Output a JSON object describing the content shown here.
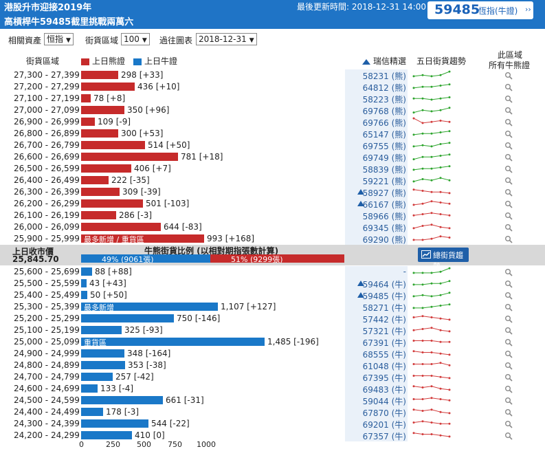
{
  "header": {
    "title_line1": "港股升市迎接2019年",
    "title_line2": "高槓桿牛59485截里挑戰兩萬六",
    "update_label": "最後更新時間: 2018-12-31 14:00",
    "box_number": "59485",
    "box_label": "恆指(牛證)",
    "box_arrow": "››",
    "brand_color": "#1f74c6"
  },
  "controls": {
    "asset_label": "相關資產",
    "asset_value": "恒指",
    "zone_label": "街貨區域",
    "zone_value": "100",
    "history_label": "過往圖表",
    "history_value": "2018-12-31"
  },
  "columns": {
    "zone": "街貨區域",
    "bear_legend": "上日熊證",
    "bull_legend": "上日牛證",
    "rating": "瑞信精選",
    "trend": "五日街貨趨勢",
    "all_line1": "此區域",
    "all_line2": "所有牛熊證"
  },
  "colors": {
    "bear": "#c62b2b",
    "bull": "#1a78c8",
    "trend_up": "#2ea52e",
    "trend_down": "#d23b3b",
    "code": "#2a5d9c"
  },
  "bear_rows": [
    {
      "range": "27,300 - 27,399",
      "value": 298,
      "text": "298 [+33]",
      "tag": "",
      "code": "58231 (熊)",
      "flag": false,
      "trend": [
        3,
        4,
        3,
        4,
        7
      ],
      "dir": "up"
    },
    {
      "range": "27,200 - 27,299",
      "value": 436,
      "text": "436 [+10]",
      "tag": "",
      "code": "64812 (熊)",
      "flag": false,
      "trend": [
        3,
        4,
        4,
        5,
        6
      ],
      "dir": "up"
    },
    {
      "range": "27,100 - 27,199",
      "value": 78,
      "text": "78 [+8]",
      "tag": "",
      "code": "58223 (熊)",
      "flag": false,
      "trend": [
        4,
        4,
        3,
        4,
        5
      ],
      "dir": "up"
    },
    {
      "range": "27,000 - 27,099",
      "value": 350,
      "text": "350 [+96]",
      "tag": "",
      "code": "69768 (熊)",
      "flag": false,
      "trend": [
        2,
        4,
        3,
        4,
        6
      ],
      "dir": "up"
    },
    {
      "range": "26,900 - 26,999",
      "value": 109,
      "text": "109 [-9]",
      "tag": "",
      "code": "69766 (熊)",
      "flag": false,
      "trend": [
        7,
        3,
        4,
        5,
        4
      ],
      "dir": "down"
    },
    {
      "range": "26,800 - 26,899",
      "value": 300,
      "text": "300 [+53]",
      "tag": "",
      "code": "65147 (熊)",
      "flag": false,
      "trend": [
        3,
        4,
        4,
        5,
        6
      ],
      "dir": "up"
    },
    {
      "range": "26,700 - 26,799",
      "value": 514,
      "text": "514 [+50]",
      "tag": "",
      "code": "69755 (熊)",
      "flag": false,
      "trend": [
        3,
        4,
        3,
        5,
        6
      ],
      "dir": "up"
    },
    {
      "range": "26,600 - 26,699",
      "value": 781,
      "text": "781 [+18]",
      "tag": "",
      "code": "69749 (熊)",
      "flag": false,
      "trend": [
        2,
        4,
        4,
        5,
        6
      ],
      "dir": "up"
    },
    {
      "range": "26,500 - 26,599",
      "value": 406,
      "text": "406 [+7]",
      "tag": "",
      "code": "58839 (熊)",
      "flag": false,
      "trend": [
        3,
        4,
        4,
        5,
        6
      ],
      "dir": "up"
    },
    {
      "range": "26,400 - 26,499",
      "value": 222,
      "text": "222 [-35]",
      "tag": "",
      "code": "59221 (熊)",
      "flag": false,
      "trend": [
        3,
        5,
        4,
        6,
        4
      ],
      "dir": "up"
    },
    {
      "range": "26,300 - 26,399",
      "value": 309,
      "text": "309 [-39]",
      "tag": "",
      "code": "58927 (熊)",
      "flag": true,
      "trend": [
        6,
        5,
        4,
        4,
        3
      ],
      "dir": "down"
    },
    {
      "range": "26,200 - 26,299",
      "value": 501,
      "text": "501 [-103]",
      "tag": "",
      "code": "66167 (熊)",
      "flag": true,
      "trend": [
        3,
        4,
        6,
        5,
        4
      ],
      "dir": "down"
    },
    {
      "range": "26,100 - 26,199",
      "value": 286,
      "text": "286 [-3]",
      "tag": "",
      "code": "58966 (熊)",
      "flag": false,
      "trend": [
        4,
        5,
        6,
        5,
        4
      ],
      "dir": "down"
    },
    {
      "range": "26,000 - 26,099",
      "value": 644,
      "text": "644 [-83]",
      "tag": "",
      "code": "69345 (熊)",
      "flag": false,
      "trend": [
        3,
        5,
        6,
        4,
        3
      ],
      "dir": "down"
    },
    {
      "range": "25,900 - 25,999",
      "value": 993,
      "text": "993 [+168]",
      "tag": "最多新增 / 重貨區",
      "code": "69290 (熊)",
      "flag": false,
      "trend": [
        3,
        3,
        4,
        6,
        5
      ],
      "dir": "down"
    }
  ],
  "middle": {
    "close_label": "上日收市價",
    "close_value": "25,845.70",
    "ratio_title": "牛熊街貨比例 (以相對期指張數計算)",
    "bull_ratio": 49,
    "bull_text": "49% (9061張)",
    "bear_text": "51% (9299張)",
    "trend_button": "總街貨趨勢"
  },
  "bull_rows": [
    {
      "range": "25,600 - 25,699",
      "value": 88,
      "text": "88 [+88]",
      "tag": "",
      "code": "-",
      "flag": false,
      "trend": [
        3,
        3,
        3,
        4,
        7
      ],
      "dir": "up"
    },
    {
      "range": "25,500 - 25,599",
      "value": 43,
      "text": "43 [+43]",
      "tag": "",
      "code": "59464 (牛)",
      "flag": true,
      "trend": [
        3,
        3,
        4,
        4,
        6
      ],
      "dir": "up"
    },
    {
      "range": "25,400 - 25,499",
      "value": 50,
      "text": "50 [+50]",
      "tag": "",
      "code": "59485 (牛)",
      "flag": true,
      "trend": [
        3,
        4,
        3,
        4,
        6
      ],
      "dir": "up"
    },
    {
      "range": "25,300 - 25,399",
      "value": 1107,
      "text": "1,107 [+127]",
      "tag": "最多新增",
      "code": "58271 (牛)",
      "flag": false,
      "trend": [
        3,
        3,
        4,
        5,
        6
      ],
      "dir": "up"
    },
    {
      "range": "25,200 - 25,299",
      "value": 750,
      "text": "750 [-146]",
      "tag": "",
      "code": "57442 (牛)",
      "flag": false,
      "trend": [
        5,
        6,
        5,
        4,
        3
      ],
      "dir": "down"
    },
    {
      "range": "25,100 - 25,199",
      "value": 325,
      "text": "325 [-93]",
      "tag": "",
      "code": "57321 (牛)",
      "flag": false,
      "trend": [
        4,
        5,
        6,
        4,
        3
      ],
      "dir": "down"
    },
    {
      "range": "25,000 - 25,099",
      "value": 1485,
      "text": "1,485 [-196]",
      "tag": "重貨區",
      "code": "67391 (牛)",
      "flag": false,
      "trend": [
        5,
        5,
        5,
        4,
        4
      ],
      "dir": "down"
    },
    {
      "range": "24,900 - 24,999",
      "value": 348,
      "text": "348 [-164]",
      "tag": "",
      "code": "68555 (牛)",
      "flag": false,
      "trend": [
        6,
        5,
        5,
        4,
        3
      ],
      "dir": "down"
    },
    {
      "range": "24,800 - 24,899",
      "value": 353,
      "text": "353 [-38]",
      "tag": "",
      "code": "61048 (牛)",
      "flag": false,
      "trend": [
        5,
        5,
        5,
        6,
        4
      ],
      "dir": "down"
    },
    {
      "range": "24,700 - 24,799",
      "value": 257,
      "text": "257 [-42]",
      "tag": "",
      "code": "67395 (牛)",
      "flag": false,
      "trend": [
        5,
        5,
        5,
        4,
        3
      ],
      "dir": "down"
    },
    {
      "range": "24,600 - 24,699",
      "value": 133,
      "text": "133 [-4]",
      "tag": "",
      "code": "69483 (牛)",
      "flag": false,
      "trend": [
        6,
        5,
        6,
        4,
        3
      ],
      "dir": "down"
    },
    {
      "range": "24,500 - 24,599",
      "value": 661,
      "text": "661 [-31]",
      "tag": "",
      "code": "59044 (牛)",
      "flag": false,
      "trend": [
        5,
        5,
        6,
        5,
        4
      ],
      "dir": "down"
    },
    {
      "range": "24,400 - 24,499",
      "value": 178,
      "text": "178 [-3]",
      "tag": "",
      "code": "67870 (牛)",
      "flag": false,
      "trend": [
        6,
        5,
        6,
        4,
        3
      ],
      "dir": "down"
    },
    {
      "range": "24,300 - 24,399",
      "value": 544,
      "text": "544 [-22]",
      "tag": "",
      "code": "69201 (牛)",
      "flag": false,
      "trend": [
        5,
        6,
        5,
        4,
        4
      ],
      "dir": "down"
    },
    {
      "range": "24,200 - 24,299",
      "value": 410,
      "text": "410 [0]",
      "tag": "",
      "code": "67357 (牛)",
      "flag": false,
      "trend": [
        6,
        5,
        5,
        4,
        3
      ],
      "dir": "down"
    }
  ],
  "x_axis": {
    "ticks": [
      "0",
      "250",
      "500",
      "750",
      "1000"
    ]
  }
}
